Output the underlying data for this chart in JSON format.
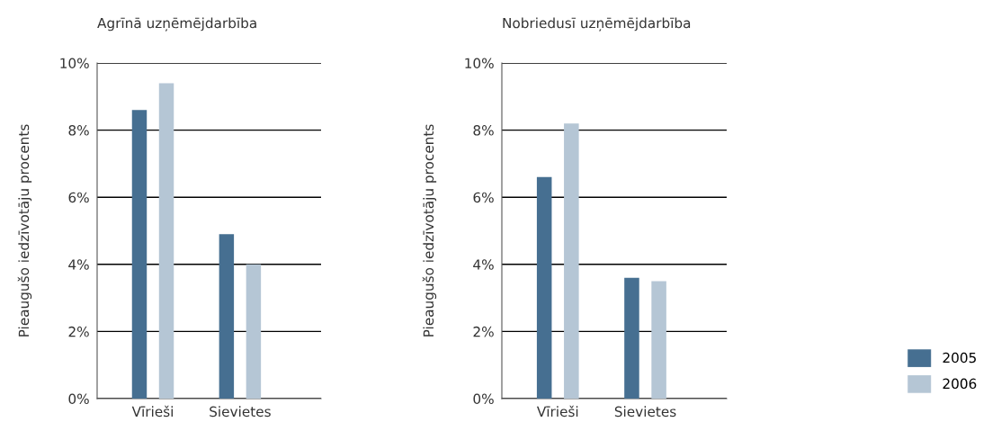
{
  "chart_data": [
    {
      "type": "bar",
      "title": "Agrīnā uzņēmējdarbība",
      "ylabel": "Pieaugušo iedzīvotāju procents",
      "categories": [
        "Vīrieši",
        "Sievietes"
      ],
      "series": [
        {
          "color": "#466f91",
          "values": [
            8.6,
            4.9
          ]
        },
        {
          "color": "#b5c6d5",
          "values": [
            9.4,
            4.0
          ]
        }
      ],
      "ylim": [
        0,
        10
      ],
      "yticks": [
        {
          "value": 0,
          "label": "0%"
        },
        {
          "value": 2,
          "label": "2%"
        },
        {
          "value": 4,
          "label": "4%"
        },
        {
          "value": 6,
          "label": "6%"
        },
        {
          "value": 8,
          "label": "8%"
        },
        {
          "value": 10,
          "label": "10%"
        }
      ],
      "grid": "y"
    },
    {
      "type": "bar",
      "title": "Nobriedusī uzņēmējdarbība",
      "ylabel": "Pieaugušo iedzīvotāju procents",
      "categories": [
        "Vīrieši",
        "Sievietes"
      ],
      "series": [
        {
          "name": "2005",
          "color": "#466f91",
          "values": [
            6.6,
            3.6
          ]
        },
        {
          "name": "2006",
          "color": "#b5c6d5",
          "values": [
            8.2,
            3.5
          ]
        }
      ],
      "ylim": [
        0,
        10
      ],
      "yticks": [
        {
          "value": 0,
          "label": "0%"
        },
        {
          "value": 2,
          "label": "2%"
        },
        {
          "value": 4,
          "label": "4%"
        },
        {
          "value": 6,
          "label": "6%"
        },
        {
          "value": 8,
          "label": "8%"
        },
        {
          "value": 10,
          "label": "10%"
        }
      ],
      "grid": "y",
      "legend": "right"
    }
  ]
}
